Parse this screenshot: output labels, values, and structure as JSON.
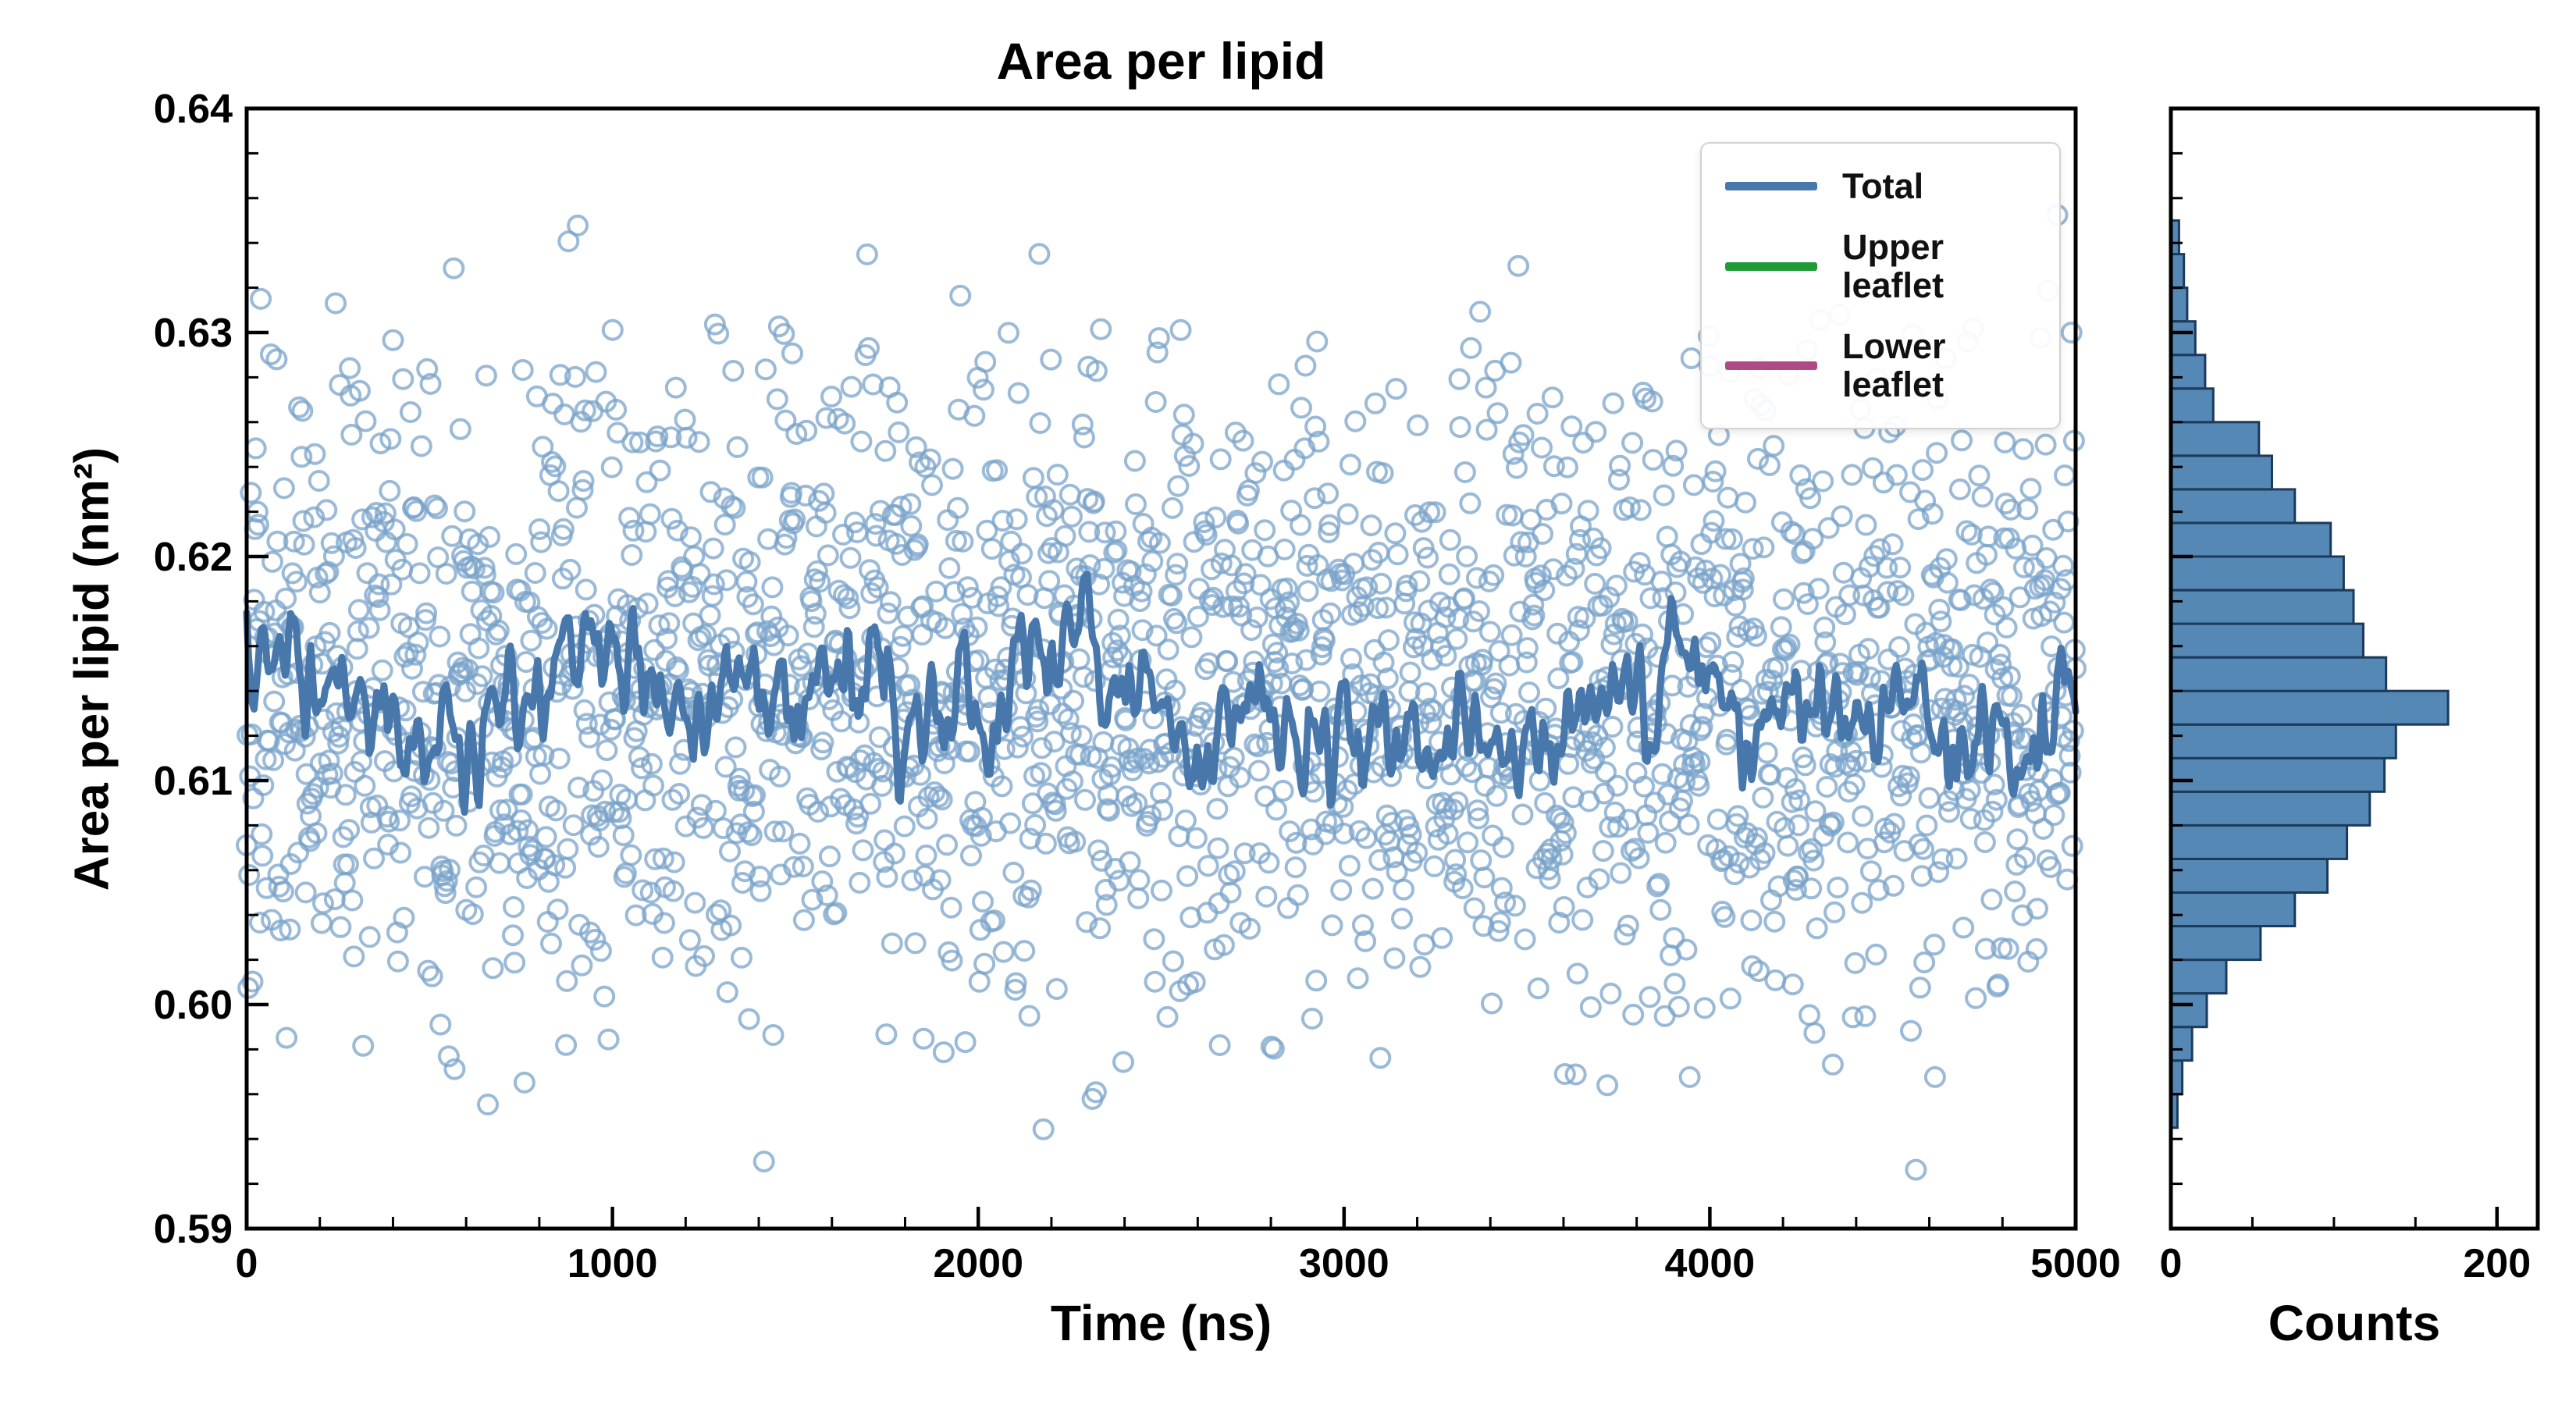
{
  "figure": {
    "background": "#ffffff",
    "title": "Area per lipid"
  },
  "chart_data": [
    {
      "type": "scatter",
      "panel": "main",
      "title": "Area per lipid",
      "xlabel": "Time (ns)",
      "ylabel": "Area per lipid (nm²)",
      "xlim": [
        0,
        5000
      ],
      "ylim": [
        0.59,
        0.64
      ],
      "xticks": [
        0,
        1000,
        2000,
        3000,
        4000,
        5000
      ],
      "xtick_labels": [
        "0",
        "1000",
        "2000",
        "3000",
        "4000",
        "5000"
      ],
      "yticks": [
        0.59,
        0.6,
        0.61,
        0.62,
        0.63,
        0.64
      ],
      "ytick_labels": [
        "0.59",
        "0.60",
        "0.61",
        "0.62",
        "0.63",
        "0.64"
      ],
      "minor_x_step": 200,
      "minor_y_step": 0.002,
      "grid": false,
      "legend": {
        "position": "upper right",
        "entries": [
          {
            "label": "Total",
            "color": "#4878ab"
          },
          {
            "label": "Upper leaflet",
            "color": "#1f9a35"
          },
          {
            "label": "Lower leaflet",
            "color": "#b04a86"
          }
        ]
      },
      "scatter": {
        "marker": "open-circle",
        "color": "#7aa3c9",
        "n_points": 2200,
        "mean": 0.614,
        "std": 0.0072,
        "clip": [
          0.592,
          0.6375
        ],
        "seed": 42
      },
      "running_average": {
        "color": "#4878ab",
        "n_points": 1000,
        "mean": 0.6142,
        "std": 0.002,
        "range": [
          0.607,
          0.6225
        ],
        "seed": 7
      }
    },
    {
      "type": "bar",
      "panel": "histogram",
      "orientation": "horizontal",
      "xlabel": "Counts",
      "xlim": [
        0,
        225
      ],
      "xticks": [
        0,
        200
      ],
      "xtick_labels": [
        "0",
        "200"
      ],
      "minor_x_step": 50,
      "ylim": [
        0.59,
        0.64
      ],
      "minor_y_step": 0.002,
      "bar_color": "#5588b5",
      "bar_edge_color": "#1b3a5c",
      "bin_start": 0.5945,
      "bin_width": 0.0015,
      "counts": [
        4,
        7,
        13,
        22,
        34,
        55,
        76,
        96,
        108,
        122,
        131,
        138,
        170,
        132,
        118,
        112,
        106,
        98,
        76,
        62,
        54,
        26,
        21,
        15,
        10,
        8,
        5
      ]
    }
  ]
}
